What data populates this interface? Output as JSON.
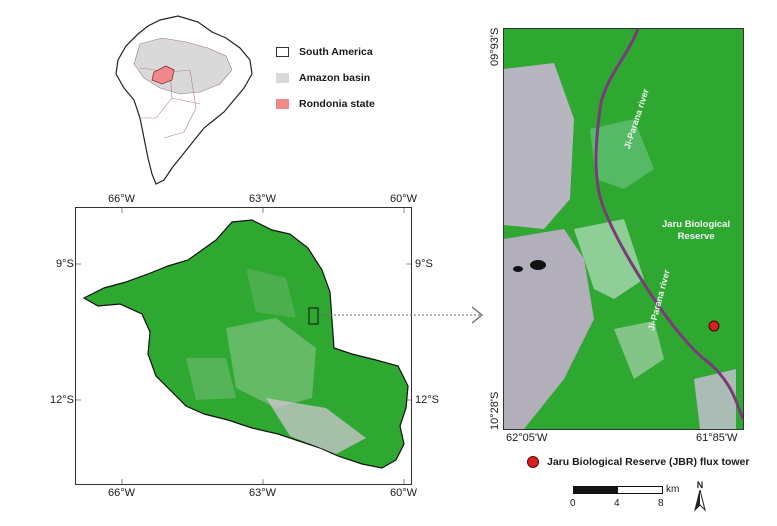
{
  "legend": {
    "items": [
      {
        "label": "South America",
        "color": "#ffffff"
      },
      {
        "label": "Amazon basin",
        "color": "#d9d9d9"
      },
      {
        "label": "Rondonia state",
        "color": "#f08a8a"
      }
    ]
  },
  "state_map": {
    "top_lon": [
      "66°W",
      "63°W",
      "60°W"
    ],
    "bottom_lon": [
      "66°W",
      "63°W",
      "60°W"
    ],
    "left_lat": [
      "9°S",
      "12°S"
    ],
    "right_lat": [
      "9°S",
      "12°S"
    ]
  },
  "detail_map": {
    "lat_top": "09°93'S",
    "lat_bottom": "10°28'S",
    "lon_left": "62°05'W",
    "lon_right": "61°85'W",
    "river_label_1": "Ji-Parana river",
    "river_label_2": "Ji-Parana river",
    "reserve_label_line1": "Jaru Biological",
    "reserve_label_line2": "Reserve"
  },
  "tower_legend": "Jaru Biological Reserve (JBR) flux tower",
  "scale_bar": {
    "ticks": [
      "0",
      "4",
      "8"
    ],
    "unit": "km"
  },
  "north_arrow": "N",
  "colors": {
    "forest": "#2fa832",
    "rondonia": "#f08a8a",
    "amazon": "#d9d9d9",
    "tower": "#d62020",
    "river": "#7a3b7a"
  }
}
